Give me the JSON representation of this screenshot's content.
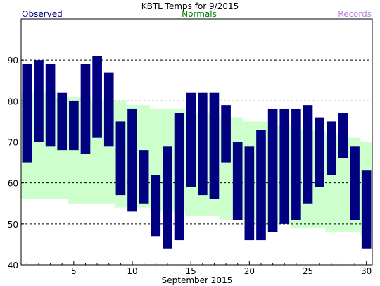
{
  "chart_data": {
    "type": "bar",
    "title": "KBTL Temps for 9/2015",
    "xlabel": "September 2015",
    "ylabel": "",
    "legend": [
      {
        "label": "Observed",
        "color": "#000080"
      },
      {
        "label": "Normals",
        "color": "#008000"
      },
      {
        "label": "Records",
        "color": "#c080e0"
      }
    ],
    "xlim": [
      0.5,
      30.5
    ],
    "ylim": [
      40,
      100
    ],
    "x_ticks": [
      5,
      10,
      15,
      20,
      25,
      30
    ],
    "y_ticks": [
      40,
      50,
      60,
      70,
      80,
      90
    ],
    "gridlines_y": [
      50,
      60,
      70,
      80,
      90
    ],
    "colors": {
      "observed_bar": "#000080",
      "normals_band": "#ccffcc",
      "grid": "#000000"
    },
    "days": [
      1,
      2,
      3,
      4,
      5,
      6,
      7,
      8,
      9,
      10,
      11,
      12,
      13,
      14,
      15,
      16,
      17,
      18,
      19,
      20,
      21,
      22,
      23,
      24,
      25,
      26,
      27,
      28,
      29,
      30
    ],
    "series": [
      {
        "name": "Observed High",
        "values": [
          89,
          90,
          89,
          82,
          80,
          89,
          91,
          87,
          75,
          78,
          68,
          62,
          69,
          77,
          82,
          82,
          82,
          79,
          70,
          69,
          73,
          78,
          78,
          78,
          79,
          76,
          75,
          77,
          69,
          63
        ]
      },
      {
        "name": "Observed Low",
        "values": [
          65,
          70,
          69,
          68,
          68,
          67,
          71,
          69,
          57,
          53,
          55,
          47,
          44,
          46,
          59,
          57,
          56,
          65,
          51,
          46,
          46,
          48,
          50,
          51,
          55,
          59,
          62,
          66,
          51,
          44
        ]
      },
      {
        "name": "Normal High",
        "values": [
          82,
          82,
          82,
          81,
          81,
          81,
          80,
          80,
          80,
          79,
          79,
          78,
          78,
          78,
          77,
          77,
          77,
          76,
          76,
          75,
          75,
          74,
          74,
          73,
          73,
          73,
          72,
          71,
          71,
          70
        ]
      },
      {
        "name": "Normal Low",
        "values": [
          56,
          56,
          56,
          56,
          55,
          55,
          55,
          55,
          54,
          54,
          54,
          53,
          53,
          53,
          52,
          52,
          52,
          51,
          51,
          51,
          50,
          50,
          50,
          49,
          49,
          49,
          48,
          48,
          48,
          47
        ]
      }
    ]
  }
}
